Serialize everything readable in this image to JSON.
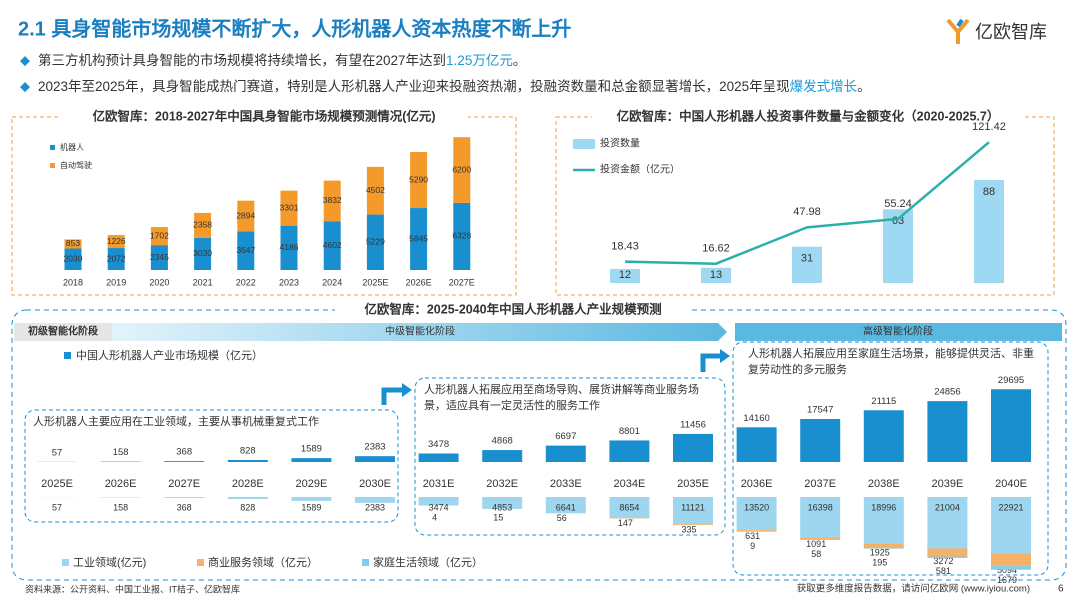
{
  "header": {
    "title": "2.1 具身智能市场规模不断扩大，人形机器人资本热度不断上升",
    "logo": "亿欧智库"
  },
  "bullets": [
    {
      "before": "第三方机构预计具身智能的市场规模将持续增长，有望在2027年达到",
      "highlight": "1.25万亿元",
      "after": "。"
    },
    {
      "before": "2023年至2025年，具身智能成热门赛道，特别是人形机器人产业迎来投融资热潮，投融资数量和总金额显著增长，2025年呈现",
      "highlight": "爆发式增长",
      "after": "。"
    }
  ],
  "chart_data": [
    {
      "type": "bar",
      "stacked": true,
      "title": "亿欧智库：2018-2027年中国具身智能市场规模预测情况(亿元)",
      "categories": [
        "2018",
        "2019",
        "2020",
        "2021",
        "2022",
        "2023",
        "2024",
        "2025E",
        "2026E",
        "2027E"
      ],
      "series": [
        {
          "name": "机器人",
          "color": "#1a8fd0",
          "values": [
            2030,
            2072,
            2345,
            3030,
            3647,
            4186,
            4602,
            5229,
            5845,
            6328
          ]
        },
        {
          "name": "自动驾驶",
          "color": "#f39a2b",
          "values": [
            853,
            1226,
            1702,
            2358,
            2894,
            3301,
            3832,
            4502,
            5290,
            6200
          ]
        }
      ]
    },
    {
      "type": "bar",
      "title": "亿欧智库：中国人形机器人投资事件数量与金额变化（2020-2025.7）",
      "series": [
        {
          "name": "投资数量",
          "type": "bar",
          "color": "#9fd8f2",
          "values": [
            12,
            13,
            31,
            63,
            88
          ]
        },
        {
          "name": "投资金额（亿元）",
          "type": "line",
          "color": "#2ab0a8",
          "values": [
            18.43,
            16.62,
            47.98,
            55.24,
            121.42
          ]
        }
      ]
    },
    {
      "type": "bar",
      "title": "亿欧智库：2025-2040年中国人形机器人产业规模预测",
      "phases": [
        "初级智能化阶段",
        "中级智能化阶段",
        "高级智能化阶段"
      ],
      "descriptions": [
        "人形机器人主要应用在工业领域，主要从事机械重复式工作",
        "人形机器人拓展应用至商场导购、展货讲解等商业服务场景，适应具有一定灵活性的服务工作",
        "人形机器人拓展应用至家庭生活场景，能够提供灵活、非重复劳动性的多元服务"
      ],
      "categories": [
        "2025E",
        "2026E",
        "2027E",
        "2028E",
        "2029E",
        "2030E",
        "2031E",
        "2032E",
        "2033E",
        "2034E",
        "2035E",
        "2036E",
        "2037E",
        "2038E",
        "2039E",
        "2040E"
      ],
      "series": [
        {
          "name": "中国人形机器人产业市场规模（亿元）",
          "color": "#1a8fd0",
          "values": [
            57,
            158,
            368,
            828,
            1589,
            2383,
            3478,
            4868,
            6697,
            8801,
            11456,
            14160,
            17547,
            21115,
            24856,
            29695
          ]
        },
        {
          "name": "工业领域(亿元)",
          "color": "#9fd6ef",
          "values": [
            57,
            158,
            368,
            828,
            1589,
            2383,
            3474,
            4853,
            6641,
            8654,
            11121,
            13520,
            16398,
            18996,
            21004,
            22921
          ]
        },
        {
          "name": "商业服务领域（亿元）",
          "color": "#f5b06a",
          "values": [
            null,
            null,
            null,
            null,
            null,
            null,
            4,
            15,
            56,
            147,
            335,
            631,
            1091,
            1925,
            3272,
            5094
          ]
        },
        {
          "name": "家庭生活领域（亿元）",
          "color": "#86cde6",
          "values": [
            null,
            null,
            null,
            null,
            null,
            null,
            null,
            null,
            null,
            null,
            null,
            9,
            58,
            195,
            581,
            1679
          ]
        }
      ]
    }
  ],
  "footer": {
    "source": "资料来源：公开资料、中国工业报、IT桔子、亿欧智库",
    "contact": "获取更多维度报告数据，请访问亿欧网 (www.iyiou.com)",
    "page": "6"
  }
}
